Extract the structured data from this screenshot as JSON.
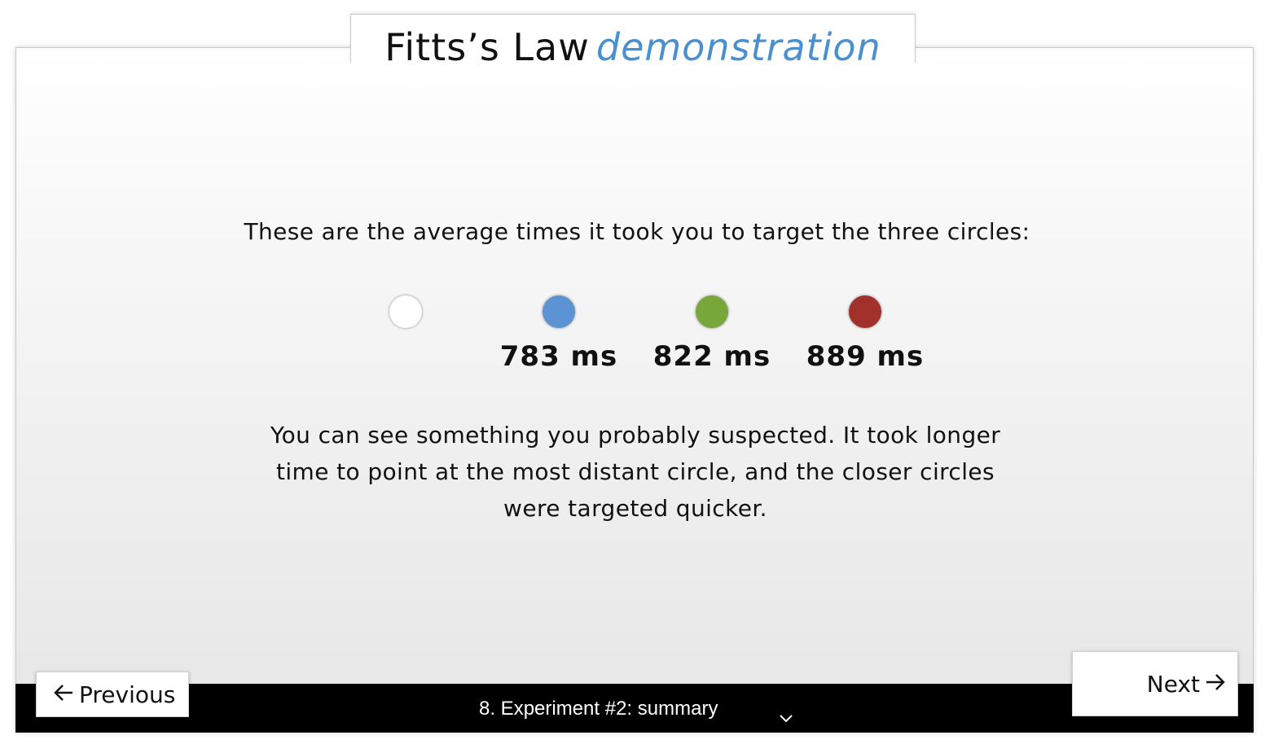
{
  "header": {
    "title_main": "Fitts’s Law",
    "title_accent": "demonstration"
  },
  "intro_text": "These are the average times it took you to target the three circles:",
  "circles": [
    {
      "color": "#ffffff",
      "time": ""
    },
    {
      "color": "#5b93d3",
      "time": "783 ms"
    },
    {
      "color": "#78a83c",
      "time": "822 ms"
    },
    {
      "color": "#a2312c",
      "time": "889 ms"
    }
  ],
  "explanation": "You can see something you probably suspected. It took longer time to point at the most distant circle, and the closer circles were targeted quicker.",
  "footer": {
    "section_label": "8. Experiment #2: summary",
    "previous_label": "Previous",
    "next_label": "Next"
  },
  "icons": {
    "previous": "arrow-left-icon",
    "next": "arrow-right-icon",
    "dropdown": "chevron-down-icon"
  }
}
